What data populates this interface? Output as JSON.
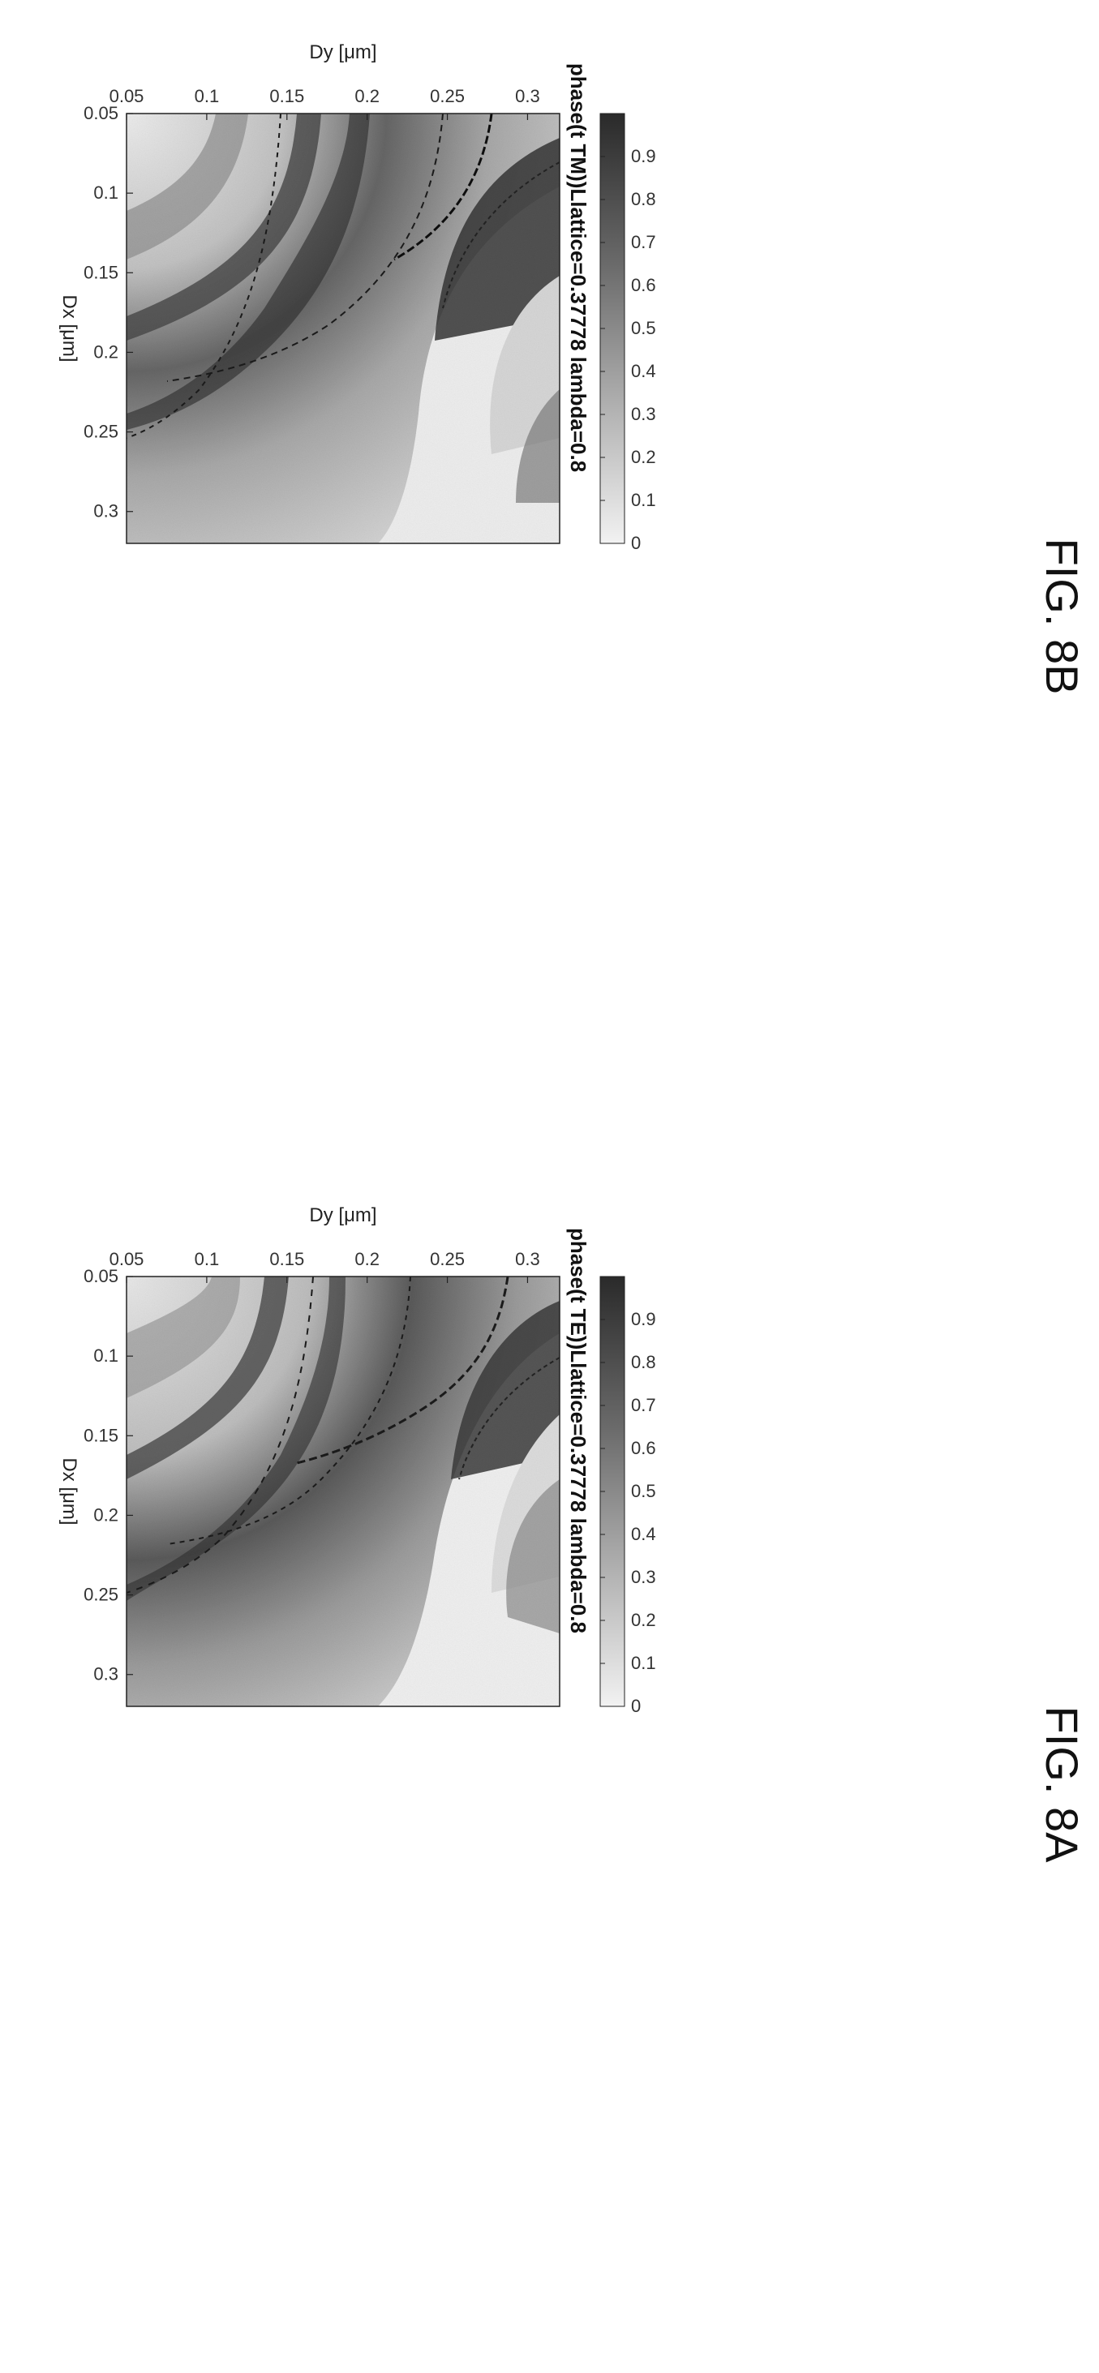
{
  "chart_data": [
    {
      "type": "heatmap",
      "title": "phase(t TE))Llattice=0.37778 lambda=0.8",
      "xlabel": "Dx [μm]",
      "ylabel": "Dy [μm]",
      "x_ticks": [
        "0.05",
        "0.1",
        "0.15",
        "0.2",
        "0.25",
        "0.3"
      ],
      "y_ticks": [
        "0.05",
        "0.1",
        "0.15",
        "0.2",
        "0.25",
        "0.3"
      ],
      "xlim": [
        0.05,
        0.32
      ],
      "ylim": [
        0.05,
        0.32
      ],
      "colorbar_ticks": [
        "0",
        "0.1",
        "0.2",
        "0.3",
        "0.4",
        "0.5",
        "0.6",
        "0.7",
        "0.8",
        "0.9"
      ],
      "colorbar_range": [
        0,
        1
      ],
      "colormap": "gray (dark = high, light = low)",
      "figure_label": "FIG. 8A"
    },
    {
      "type": "heatmap",
      "title": "phase(t TM))Llattice=0.37778 lambda=0.8",
      "xlabel": "Dx [μm]",
      "ylabel": "Dy [μm]",
      "x_ticks": [
        "0.05",
        "0.1",
        "0.15",
        "0.2",
        "0.25",
        "0.3"
      ],
      "y_ticks": [
        "0.05",
        "0.1",
        "0.15",
        "0.2",
        "0.25",
        "0.3"
      ],
      "xlim": [
        0.05,
        0.32
      ],
      "ylim": [
        0.05,
        0.32
      ],
      "colorbar_ticks": [
        "0",
        "0.1",
        "0.2",
        "0.3",
        "0.4",
        "0.5",
        "0.6",
        "0.7",
        "0.8",
        "0.9"
      ],
      "colorbar_range": [
        0,
        1
      ],
      "colormap": "gray (dark = high, light = low)",
      "figure_label": "FIG. 8B"
    }
  ]
}
